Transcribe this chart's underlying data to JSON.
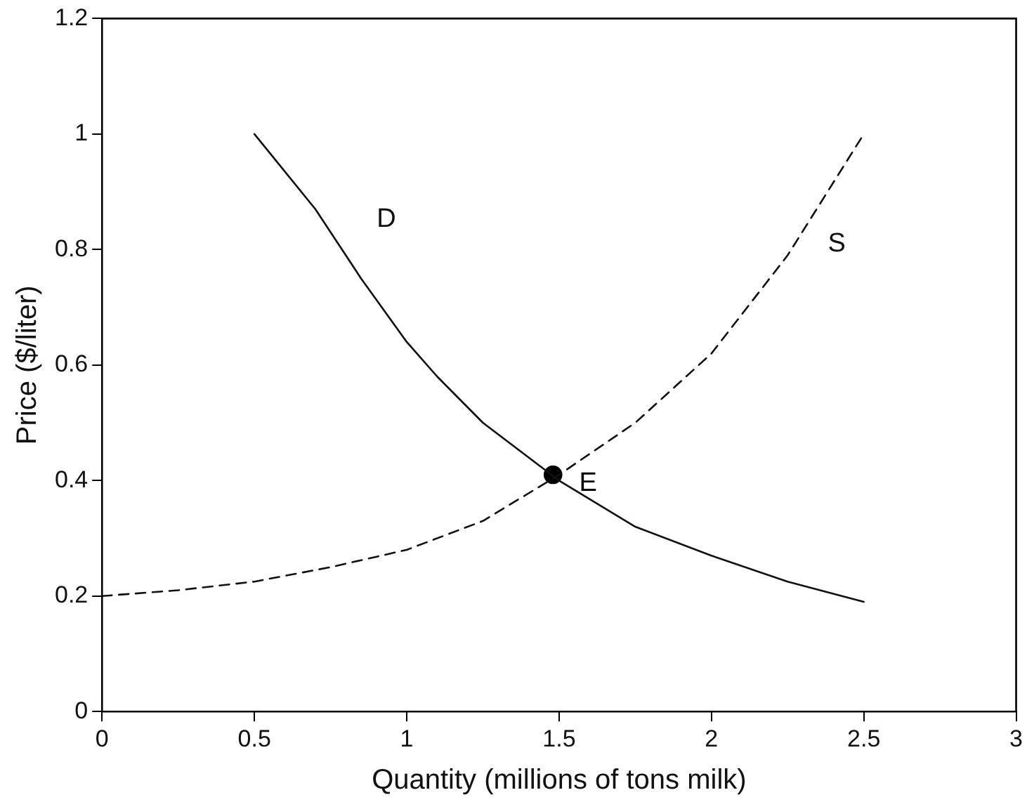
{
  "chart_data": {
    "type": "line",
    "xlabel": "Quantity (millions of tons milk)",
    "ylabel": "Price ($/liter)",
    "xlim": [
      0,
      3
    ],
    "xticks": [
      0,
      0.5,
      1,
      1.5,
      2,
      2.5,
      3
    ],
    "ylim": [
      0,
      1.2
    ],
    "yticks": [
      0,
      0.2,
      0.4,
      0.6,
      0.8,
      1,
      1.2
    ],
    "grid": false,
    "legend": false,
    "series": [
      {
        "name": "D",
        "color": "#111111",
        "line_style": "solid",
        "marker": "none",
        "x": [
          0.5,
          0.7,
          0.85,
          1.0,
          1.1,
          1.25,
          1.5,
          1.75,
          2.0,
          2.25,
          2.5
        ],
        "values": [
          1.0,
          0.87,
          0.75,
          0.64,
          0.58,
          0.5,
          0.4,
          0.32,
          0.27,
          0.225,
          0.19
        ]
      },
      {
        "name": "S",
        "color": "#111111",
        "line_style": "dashed",
        "marker": "none",
        "x": [
          0,
          0.25,
          0.5,
          0.75,
          1.0,
          1.25,
          1.5,
          1.75,
          2.0,
          2.25,
          2.5
        ],
        "values": [
          0.2,
          0.21,
          0.225,
          0.25,
          0.28,
          0.33,
          0.41,
          0.5,
          0.62,
          0.79,
          1.0
        ]
      },
      {
        "type": "scatter",
        "name": "E",
        "color": "#000000",
        "marker": "circle",
        "x": [
          1.48
        ],
        "values": [
          0.41
        ]
      }
    ]
  }
}
